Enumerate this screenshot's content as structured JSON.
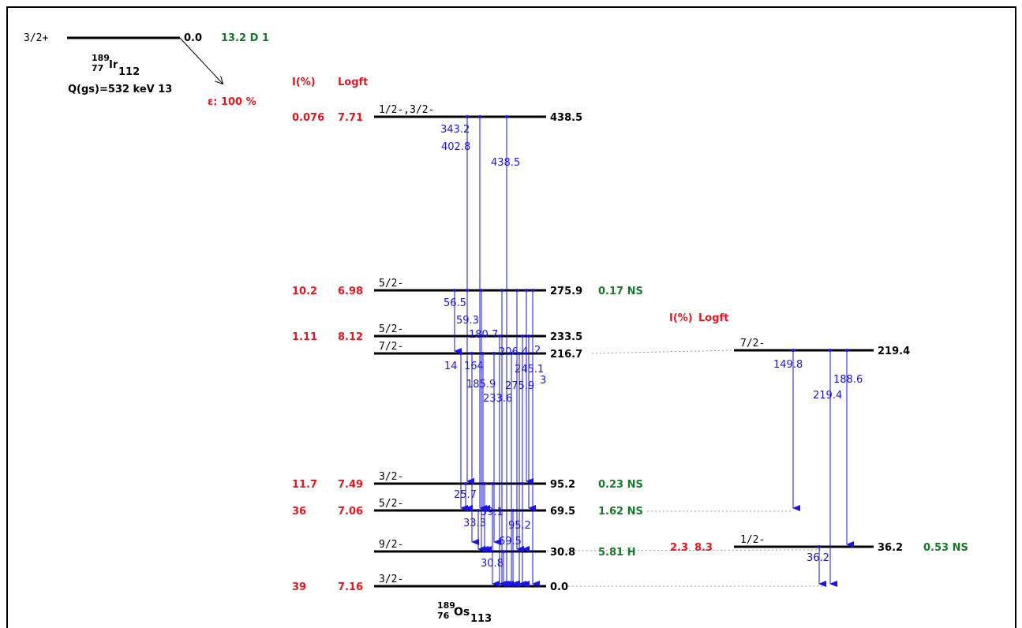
{
  "parent": {
    "spin": "3/2+",
    "energy": "0.0",
    "halflife": "13.2 D 1",
    "mass": "189",
    "z": "77",
    "symbol": "Ir",
    "n": "112",
    "qvalue": "Q(gs)=532 keV 13",
    "decay": "ε: 100 %"
  },
  "daughter": {
    "mass": "189",
    "z": "76",
    "symbol": "Os",
    "n": "113"
  },
  "headers": {
    "intensity": "I(%)",
    "logft": "Logft"
  },
  "colors": {
    "level": "#000000",
    "gamma": "#1a14e6",
    "feeding": "#e8141e",
    "halflife": "#157a28",
    "connector": "#999999"
  },
  "main_levels": [
    {
      "id": "L438",
      "energy": "438.5",
      "spin": "1/2-,3/2-",
      "intensity": "0.076",
      "logft": "7.71",
      "halflife": ""
    },
    {
      "id": "L275",
      "energy": "275.9",
      "spin": "5/2-",
      "intensity": "10.2",
      "logft": "6.98",
      "halflife": "0.17 NS"
    },
    {
      "id": "L233",
      "energy": "233.5",
      "spin": "5/2-",
      "intensity": "1.11",
      "logft": "8.12",
      "halflife": ""
    },
    {
      "id": "L216",
      "energy": "216.7",
      "spin": "7/2-",
      "intensity": "",
      "logft": "",
      "halflife": ""
    },
    {
      "id": "L95",
      "energy": "95.2",
      "spin": "3/2-",
      "intensity": "11.7",
      "logft": "7.49",
      "halflife": "0.23 NS"
    },
    {
      "id": "L69",
      "energy": "69.5",
      "spin": "5/2-",
      "intensity": "36",
      "logft": "7.06",
      "halflife": "1.62 NS"
    },
    {
      "id": "L30",
      "energy": "30.8",
      "spin": "9/2-",
      "intensity": "",
      "logft": "",
      "halflife": "5.81 H"
    },
    {
      "id": "L0",
      "energy": "0.0",
      "spin": "3/2-",
      "intensity": "39",
      "logft": "7.16",
      "halflife": ""
    }
  ],
  "side_levels": [
    {
      "id": "R219",
      "energy": "219.4",
      "spin": "7/2-",
      "intensity": "",
      "logft": "",
      "halflife": ""
    },
    {
      "id": "R36",
      "energy": "36.2",
      "spin": "1/2-",
      "intensity": "2.3",
      "logft": "8.3",
      "halflife": "0.53 NS"
    }
  ],
  "gamma_labels": [
    {
      "text": "343.2"
    },
    {
      "text": "402.8"
    },
    {
      "text": "438.5"
    },
    {
      "text": "56.5"
    },
    {
      "text": "59.3"
    },
    {
      "text": "180.7"
    },
    {
      "text": "206.4"
    },
    {
      "text": "2"
    },
    {
      "text": "14"
    },
    {
      "text": "164"
    },
    {
      "text": "245.1"
    },
    {
      "text": "185.9"
    },
    {
      "text": "275.9"
    },
    {
      "text": "3"
    },
    {
      "text": "233.6"
    },
    {
      "text": "25.7"
    },
    {
      "text": "59.1"
    },
    {
      "text": "33.3"
    },
    {
      "text": "95.2"
    },
    {
      "text": "69.5"
    },
    {
      "text": "30.8"
    },
    {
      "text": "149.8"
    },
    {
      "text": "188.6"
    },
    {
      "text": "219.4"
    },
    {
      "text": "36.2"
    }
  ]
}
